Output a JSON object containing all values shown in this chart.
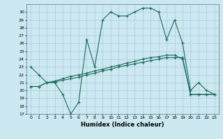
{
  "xlabel": "Humidex (Indice chaleur)",
  "bg_color": "#cce8f0",
  "grid_color": "#aaccdd",
  "line_color": "#1a6b5a",
  "xlim": [
    -0.5,
    23.5
  ],
  "ylim": [
    17,
    31
  ],
  "xticks": [
    0,
    1,
    2,
    3,
    4,
    5,
    6,
    7,
    8,
    9,
    10,
    11,
    12,
    13,
    14,
    15,
    16,
    17,
    18,
    19,
    20,
    21,
    22,
    23
  ],
  "yticks": [
    17,
    18,
    19,
    20,
    21,
    22,
    23,
    24,
    25,
    26,
    27,
    28,
    29,
    30
  ],
  "curve1_x": [
    0,
    1,
    2,
    3,
    4,
    5,
    6,
    7,
    8,
    9,
    10,
    11,
    12,
    13,
    14,
    15,
    16,
    17,
    18,
    19,
    20,
    21,
    22,
    23
  ],
  "curve1_y": [
    23,
    22,
    21,
    21,
    19.5,
    17,
    18.5,
    26.5,
    23,
    29,
    30,
    29.5,
    29.5,
    30,
    30.5,
    30.5,
    30,
    26.5,
    29,
    26,
    20,
    21,
    20,
    19.5
  ],
  "curve2_x": [
    0,
    1,
    2,
    3,
    4,
    5,
    6,
    7,
    8,
    9,
    10,
    11,
    12,
    13,
    14,
    15,
    16,
    17,
    18,
    19,
    20,
    21,
    22,
    23
  ],
  "curve2_y": [
    20.5,
    20.5,
    21,
    21.2,
    21.5,
    21.8,
    22,
    22.2,
    22.5,
    22.7,
    23,
    23.2,
    23.5,
    23.7,
    24,
    24.2,
    24.3,
    24.5,
    24.5,
    24,
    19.5,
    19.5,
    19.5,
    19.5
  ],
  "curve3_x": [
    0,
    1,
    2,
    3,
    4,
    5,
    6,
    7,
    8,
    9,
    10,
    11,
    12,
    13,
    14,
    15,
    16,
    17,
    18,
    19,
    20,
    21,
    22,
    23
  ],
  "curve3_y": [
    20.5,
    20.5,
    21,
    21.1,
    21.3,
    21.5,
    21.7,
    22,
    22.2,
    22.5,
    22.7,
    23,
    23.2,
    23.4,
    23.6,
    23.8,
    24,
    24.2,
    24.2,
    24.2,
    19.5,
    19.5,
    19.5,
    19.5
  ],
  "xlabel_fontsize": 6,
  "tick_fontsize": 4.5,
  "linewidth": 0.8,
  "markersize": 3
}
